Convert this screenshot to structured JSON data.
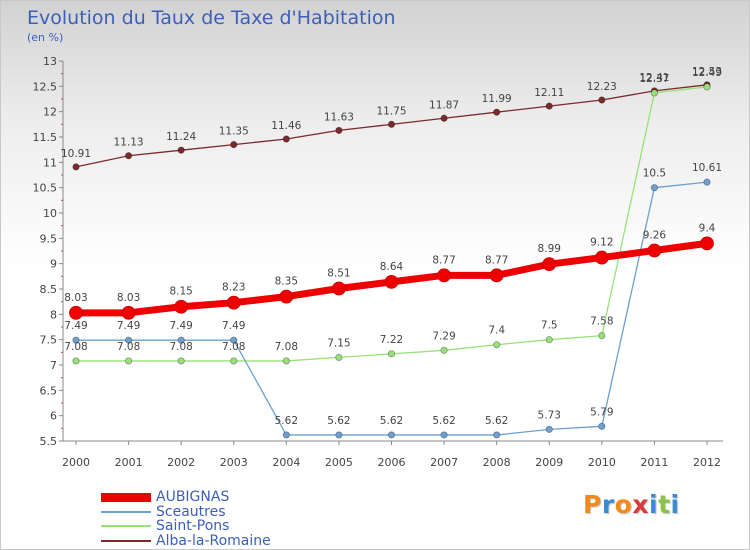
{
  "header": {
    "title": "Evolution du Taux de Taxe d'Habitation",
    "subtitle": "(en %)"
  },
  "chart_data": {
    "type": "line",
    "title": "Evolution du Taux de Taxe d'Habitation",
    "ylabel": "(en %)",
    "xlabel": "",
    "categories": [
      "2000",
      "2001",
      "2002",
      "2003",
      "2004",
      "2005",
      "2006",
      "2007",
      "2008",
      "2009",
      "2010",
      "2011",
      "2012"
    ],
    "ylim": [
      5.5,
      13
    ],
    "yticks": [
      "5.5",
      "6",
      "6.5",
      "7",
      "7.5",
      "8",
      "8.5",
      "9",
      "9.5",
      "10",
      "10.5",
      "11",
      "11.5",
      "12",
      "12.5",
      "13"
    ],
    "grid": false,
    "legend_position": "bottom-left",
    "series": [
      {
        "name": "AUBIGNAS",
        "color": "#ee0000",
        "values": [
          8.03,
          8.03,
          8.15,
          8.23,
          8.35,
          8.51,
          8.64,
          8.77,
          8.77,
          8.99,
          9.12,
          9.26,
          9.4
        ],
        "labels": [
          "8.03",
          "8.03",
          "8.15",
          "8.23",
          "8.35",
          "8.51",
          "8.64",
          "8.77",
          "8.77",
          "8.99",
          "9.12",
          "9.26",
          "9.4"
        ]
      },
      {
        "name": "Sceautres",
        "color": "#6e9fd0",
        "values": [
          7.49,
          7.49,
          7.49,
          7.49,
          5.62,
          5.62,
          5.62,
          5.62,
          5.62,
          5.73,
          5.79,
          10.5,
          10.61
        ],
        "labels": [
          "7.49",
          "7.49",
          "7.49",
          "7.49",
          "5.62",
          "5.62",
          "5.62",
          "5.62",
          "5.62",
          "5.73",
          "5.79",
          "10.5",
          "10.61"
        ]
      },
      {
        "name": "Saint-Pons",
        "color": "#99e07a",
        "values": [
          7.08,
          7.08,
          7.08,
          7.08,
          7.08,
          7.15,
          7.22,
          7.29,
          7.4,
          7.5,
          7.58,
          12.37,
          12.49
        ],
        "labels": [
          "7.08",
          "7.08",
          "7.08",
          "7.08",
          "7.08",
          "7.15",
          "7.22",
          "7.29",
          "7.4",
          "7.5",
          "7.58",
          "12.37",
          "12.49"
        ]
      },
      {
        "name": "Alba-la-Romaine",
        "color": "#7a2a2a",
        "values": [
          10.91,
          11.13,
          11.24,
          11.35,
          11.46,
          11.63,
          11.75,
          11.87,
          11.99,
          12.11,
          12.23,
          12.41,
          12.53
        ],
        "labels": [
          "10.91",
          "11.13",
          "11.24",
          "11.35",
          "11.46",
          "11.63",
          "11.75",
          "11.87",
          "11.99",
          "12.11",
          "12.23",
          "12.41",
          "12.53"
        ]
      }
    ]
  },
  "legend": {
    "items": [
      {
        "label": "AUBIGNAS",
        "color": "#ee0000"
      },
      {
        "label": "Sceautres",
        "color": "#6e9fd0"
      },
      {
        "label": "Saint-Pons",
        "color": "#99e07a"
      },
      {
        "label": "Alba-la-Romaine",
        "color": "#7a2a2a"
      }
    ]
  },
  "logo": {
    "letters": [
      "P",
      "r",
      "o",
      "x",
      "i",
      "t",
      "i"
    ],
    "colors": [
      "#f08a1d",
      "#3a8ad6",
      "#f08a1d",
      "#d63a3a",
      "#3a8ad6",
      "#8bc34a",
      "#3a8ad6"
    ]
  }
}
